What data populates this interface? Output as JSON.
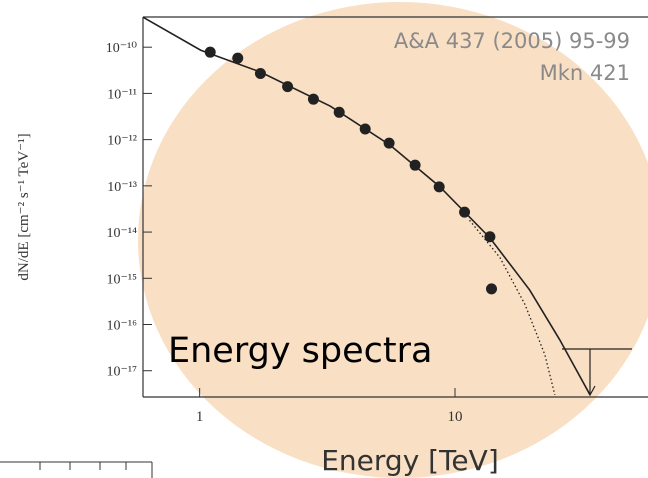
{
  "chart_data": {
    "type": "scatter",
    "x_label": "Energy [TeV]",
    "y_label": "dN/dE [cm⁻² s⁻¹ TeV⁻¹]",
    "annotations": [
      "A&A 437 (2005) 95-99",
      "Mkn 421",
      "Energy spectra"
    ],
    "log_x": true,
    "log_y": true,
    "xlim": [
      0.6,
      57
    ],
    "ylim": [
      2.7e-18,
      4.5e-10
    ],
    "xticks": [
      1,
      10
    ],
    "yticks": [
      {
        "value": 1e-10,
        "label": "10⁻¹⁰"
      },
      {
        "value": 1e-11,
        "label": "10⁻¹¹"
      },
      {
        "value": 1e-12,
        "label": "10⁻¹²"
      },
      {
        "value": 1e-13,
        "label": "10⁻¹³"
      },
      {
        "value": 1e-14,
        "label": "10⁻¹⁴"
      },
      {
        "value": 1e-15,
        "label": "10⁻¹⁵"
      },
      {
        "value": 1e-16,
        "label": "10⁻¹⁶"
      },
      {
        "value": 1e-17,
        "label": "10⁻¹⁷"
      }
    ],
    "series": [
      {
        "color": "#222222",
        "marker": "circle",
        "x": [
          1.1,
          1.41,
          1.73,
          2.21,
          2.79,
          3.52,
          4.45,
          5.52,
          6.98,
          8.67,
          10.9,
          13.7,
          13.9
        ],
        "values": [
          7.8e-11,
          5.8e-11,
          2.7e-11,
          1.4e-11,
          7.5e-12,
          3.9e-12,
          1.7e-12,
          8.4e-13,
          2.8e-13,
          9.5e-14,
          2.7e-14,
          7.9e-15,
          5.9e-16
        ]
      },
      {
        "color": "#222222",
        "line": "solid",
        "x": [
          0.6,
          1.01,
          1.73,
          3.25,
          5.57,
          8.73,
          13.7,
          19.6,
          25.7,
          33.8
        ],
        "values": [
          4.45e-10,
          8.6e-11,
          2.9e-11,
          5.3e-12,
          7.6e-13,
          9.5e-14,
          7.5e-15,
          5.6e-16,
          4.7e-17,
          3e-18
        ]
      },
      {
        "color": "#222222",
        "line": "dotted",
        "x": [
          11.4,
          15.0,
          18.8,
          22.5,
          24.6
        ],
        "values": [
          1.8e-14,
          2.8e-15,
          2.7e-16,
          2.2e-17,
          3e-18
        ]
      }
    ]
  }
}
